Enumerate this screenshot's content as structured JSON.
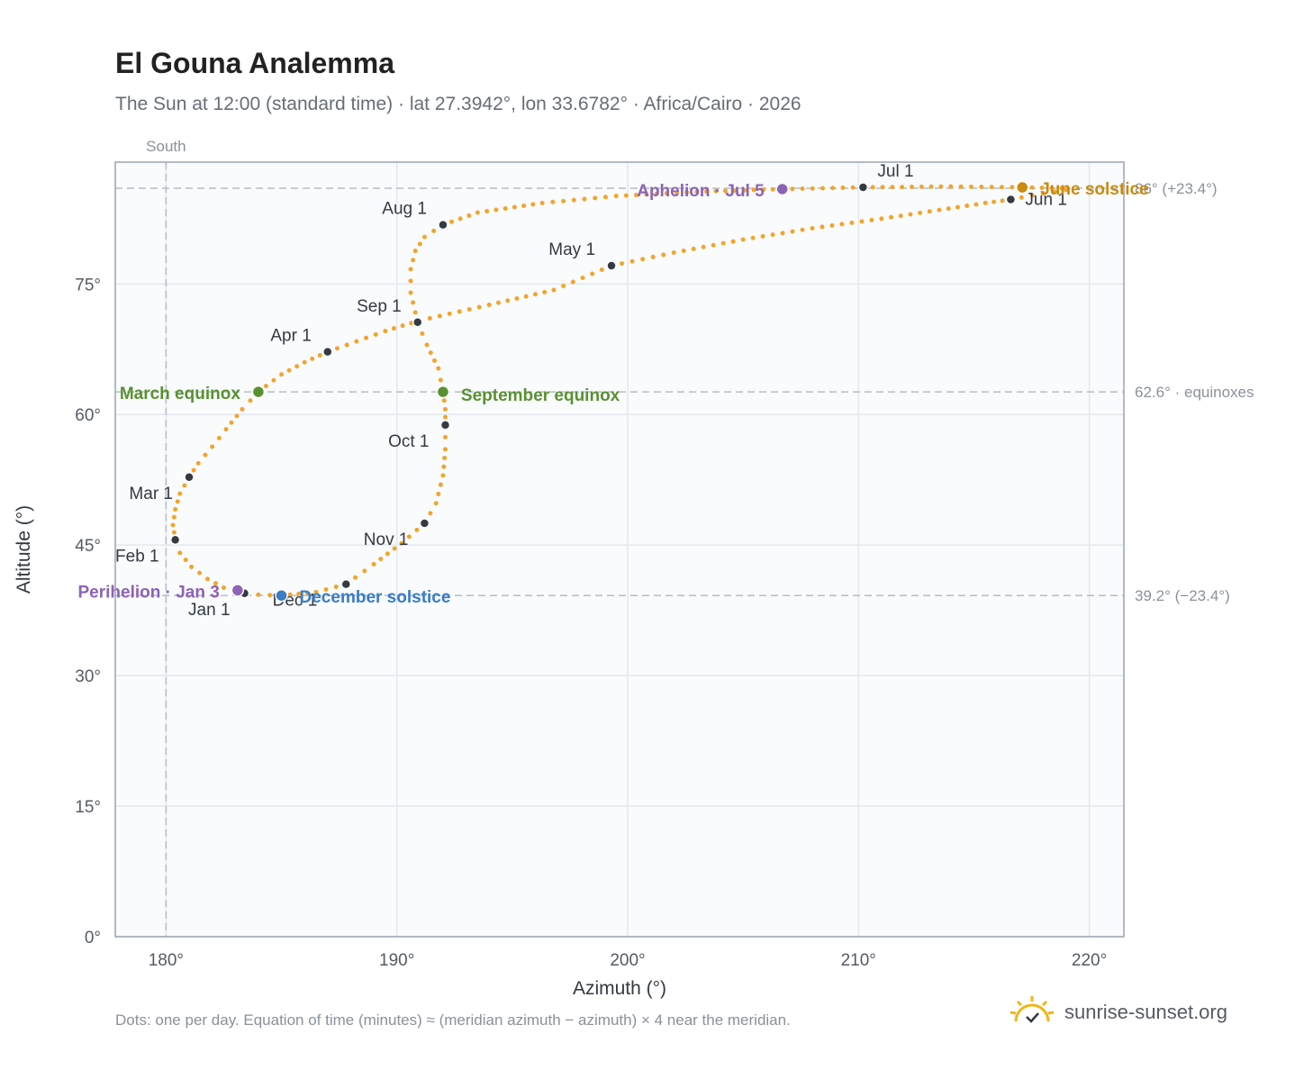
{
  "title": "El Gouna Analemma",
  "subtitle": "The Sun at 12:00 (standard time) · lat 27.3942°, lon 33.6782° · Africa/Cairo · 2026",
  "footnote": "Dots: one per day. Equation of time (minutes) ≈ (meridian azimuth − azimuth) × 4 near the meridian.",
  "brand": {
    "text": "sunrise-sunset.org",
    "icon": "sun-logo-icon"
  },
  "colors": {
    "path": "#f2a52a",
    "month_marker": "#333a42",
    "equinox": "#5a9130",
    "december_solstice": "#3a7cc6",
    "june_solstice": "#c98b10",
    "perihelion_aphelion": "#8c63b5",
    "reference_line": "#b4bec8",
    "grid": "#e3e8ee",
    "plot_bg": "#f9fbfd"
  },
  "chart_data": {
    "type": "scatter",
    "title": "El Gouna Analemma",
    "xlabel": "Azimuth (°)",
    "ylabel": "Altitude (°)",
    "xlim": [
      177.8,
      221.5
    ],
    "ylim": [
      0,
      89
    ],
    "x_ticks": [
      180,
      190,
      200,
      210,
      220
    ],
    "x_tick_labels": [
      "180°",
      "190°",
      "200°",
      "210°",
      "220°"
    ],
    "y_ticks": [
      0,
      15,
      30,
      45,
      60,
      75
    ],
    "y_tick_labels": [
      "0°",
      "15°",
      "30°",
      "45°",
      "60°",
      "75°"
    ],
    "grid": true,
    "south_line": {
      "azimuth": 180,
      "label": "South"
    },
    "reference_lines": [
      {
        "altitude": 86.0,
        "label": "86° (+23.4°)"
      },
      {
        "altitude": 62.6,
        "label": "62.6° · equinoxes"
      },
      {
        "altitude": 39.2,
        "label": "39.2° (−23.4°)"
      }
    ],
    "path_points": [
      [
        183.4,
        39.45
      ],
      [
        182.5,
        40.1
      ],
      [
        181.8,
        41.1
      ],
      [
        181.1,
        42.5
      ],
      [
        180.6,
        44.1
      ],
      [
        180.4,
        45.6
      ],
      [
        180.3,
        47.3
      ],
      [
        180.4,
        49.1
      ],
      [
        180.6,
        50.9
      ],
      [
        181.0,
        52.8
      ],
      [
        181.4,
        54.4
      ],
      [
        182.0,
        56.3
      ],
      [
        182.6,
        58.3
      ],
      [
        183.3,
        60.6
      ],
      [
        184.0,
        62.6
      ],
      [
        185.0,
        64.6
      ],
      [
        186.0,
        66.0
      ],
      [
        187.0,
        67.2
      ],
      [
        189.5,
        69.6
      ],
      [
        191.0,
        70.8
      ],
      [
        194.0,
        72.6
      ],
      [
        196.8,
        74.3
      ],
      [
        199.3,
        77.1
      ],
      [
        202.0,
        78.6
      ],
      [
        205.0,
        80.1
      ],
      [
        208.0,
        81.4
      ],
      [
        211.0,
        82.5
      ],
      [
        213.5,
        83.5
      ],
      [
        215.5,
        84.3
      ],
      [
        216.6,
        84.7
      ],
      [
        218.0,
        85.4
      ],
      [
        219.0,
        85.8
      ],
      [
        218.8,
        86.0
      ],
      [
        217.1,
        86.1
      ],
      [
        214.0,
        86.2
      ],
      [
        210.2,
        86.1
      ],
      [
        206.7,
        85.9
      ],
      [
        203.0,
        85.6
      ],
      [
        199.5,
        85.1
      ],
      [
        196.3,
        84.3
      ],
      [
        193.5,
        83.2
      ],
      [
        192.0,
        81.8
      ],
      [
        191.2,
        80.4
      ],
      [
        190.8,
        78.8
      ],
      [
        190.6,
        76.7
      ],
      [
        190.6,
        74.0
      ],
      [
        190.9,
        70.6
      ],
      [
        191.3,
        68.0
      ],
      [
        191.8,
        65.3
      ],
      [
        192.0,
        62.6
      ],
      [
        192.1,
        60.6
      ],
      [
        192.1,
        58.8
      ],
      [
        192.1,
        56.0
      ],
      [
        192.0,
        53.0
      ],
      [
        191.7,
        49.8
      ],
      [
        191.2,
        47.5
      ],
      [
        190.2,
        45.2
      ],
      [
        189.0,
        42.8
      ],
      [
        187.8,
        40.5
      ],
      [
        186.5,
        39.6
      ],
      [
        185.0,
        39.2
      ],
      [
        184.0,
        39.3
      ],
      [
        183.4,
        39.45
      ]
    ],
    "month_markers": [
      {
        "label": "Jan 1",
        "azimuth": 183.4,
        "altitude": 39.45
      },
      {
        "label": "Feb 1",
        "azimuth": 180.4,
        "altitude": 45.6
      },
      {
        "label": "Mar 1",
        "azimuth": 181.0,
        "altitude": 52.8
      },
      {
        "label": "Apr 1",
        "azimuth": 187.0,
        "altitude": 67.2
      },
      {
        "label": "May 1",
        "azimuth": 199.3,
        "altitude": 77.1
      },
      {
        "label": "Jun 1",
        "azimuth": 216.6,
        "altitude": 84.7
      },
      {
        "label": "Jul 1",
        "azimuth": 210.2,
        "altitude": 86.1
      },
      {
        "label": "Aug 1",
        "azimuth": 192.0,
        "altitude": 81.8
      },
      {
        "label": "Sep 1",
        "azimuth": 190.9,
        "altitude": 70.6
      },
      {
        "label": "Oct 1",
        "azimuth": 192.1,
        "altitude": 58.8
      },
      {
        "label": "Nov 1",
        "azimuth": 191.2,
        "altitude": 47.5
      },
      {
        "label": "Dec 1",
        "azimuth": 187.8,
        "altitude": 40.5
      }
    ],
    "events": [
      {
        "label": "March equinox",
        "azimuth": 184.0,
        "altitude": 62.6,
        "color": "#5a9130"
      },
      {
        "label": "September equinox",
        "azimuth": 192.0,
        "altitude": 62.6,
        "color": "#5a9130"
      },
      {
        "label": "December solstice",
        "azimuth": 185.0,
        "altitude": 39.2,
        "color": "#3a7cc6"
      },
      {
        "label": "June solstice",
        "azimuth": 217.1,
        "altitude": 86.1,
        "color": "#c98b10"
      },
      {
        "label": "Perihelion · Jan 3",
        "azimuth": 183.1,
        "altitude": 39.8,
        "color": "#8c63b5"
      },
      {
        "label": "Aphelion · Jul 5",
        "azimuth": 206.7,
        "altitude": 85.9,
        "color": "#8c63b5"
      }
    ]
  }
}
